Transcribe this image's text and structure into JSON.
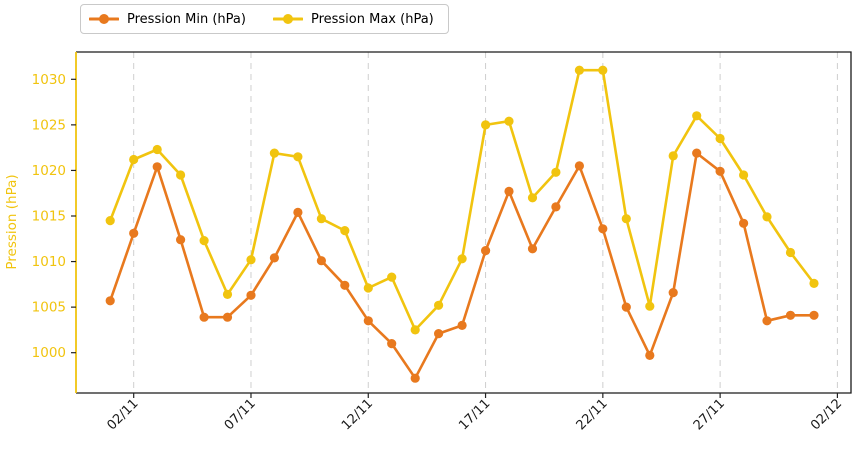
{
  "chart_data": {
    "type": "line",
    "x": [
      "01/11",
      "02/11",
      "03/11",
      "04/11",
      "05/11",
      "06/11",
      "07/11",
      "08/11",
      "09/11",
      "10/11",
      "11/11",
      "12/11",
      "13/11",
      "14/11",
      "15/11",
      "16/11",
      "17/11",
      "18/11",
      "19/11",
      "20/11",
      "21/11",
      "22/11",
      "23/11",
      "24/11",
      "25/11",
      "26/11",
      "27/11",
      "28/11",
      "29/11",
      "30/11",
      "01/12"
    ],
    "series": [
      {
        "name": "Pression Min (hPa)",
        "color": "#e8791e",
        "values": [
          1005.7,
          1013.1,
          1020.4,
          1012.4,
          1003.9,
          1003.9,
          1006.3,
          1010.4,
          1015.4,
          1010.1,
          1007.4,
          1003.5,
          1001.0,
          997.2,
          1002.1,
          1003.0,
          1011.2,
          1017.7,
          1011.4,
          1016.0,
          1020.5,
          1013.6,
          1005.0,
          999.7,
          1006.6,
          1021.9,
          1019.9,
          1014.2,
          1003.5,
          1004.1,
          1004.1
        ]
      },
      {
        "name": "Pression Max (hPa)",
        "color": "#f1c40f",
        "values": [
          1014.5,
          1021.2,
          1022.3,
          1019.5,
          1012.3,
          1006.4,
          1010.2,
          1021.9,
          1021.5,
          1014.7,
          1013.4,
          1007.1,
          1008.3,
          1002.5,
          1005.2,
          1010.3,
          1025.0,
          1025.4,
          1017.0,
          1019.8,
          1031.0,
          1031.0,
          1014.7,
          1005.1,
          1021.6,
          1026.0,
          1023.5,
          1019.5,
          1014.9,
          1011.0,
          1007.6
        ]
      }
    ],
    "title": "",
    "xlabel": "",
    "ylabel": "Pression (hPa)",
    "ylim": [
      995.5,
      1033.0
    ],
    "y_ticks": [
      1000,
      1005,
      1010,
      1015,
      1020,
      1025,
      1030
    ],
    "x_ticks": {
      "labels": [
        "02/11",
        "07/11",
        "12/11",
        "17/11",
        "22/11",
        "27/11",
        "02/12"
      ],
      "indices": [
        1,
        6,
        11,
        16,
        21,
        26,
        31
      ]
    },
    "grid": "vertical-dashed",
    "legend_position": "top-left-outside",
    "colors": {
      "y_axis": "#f1c40f",
      "x_axis_text": "#1a1a1a",
      "spine": "#1a1a1a",
      "gridline": "#cfcfcf",
      "tick_mark": "#222222"
    }
  }
}
